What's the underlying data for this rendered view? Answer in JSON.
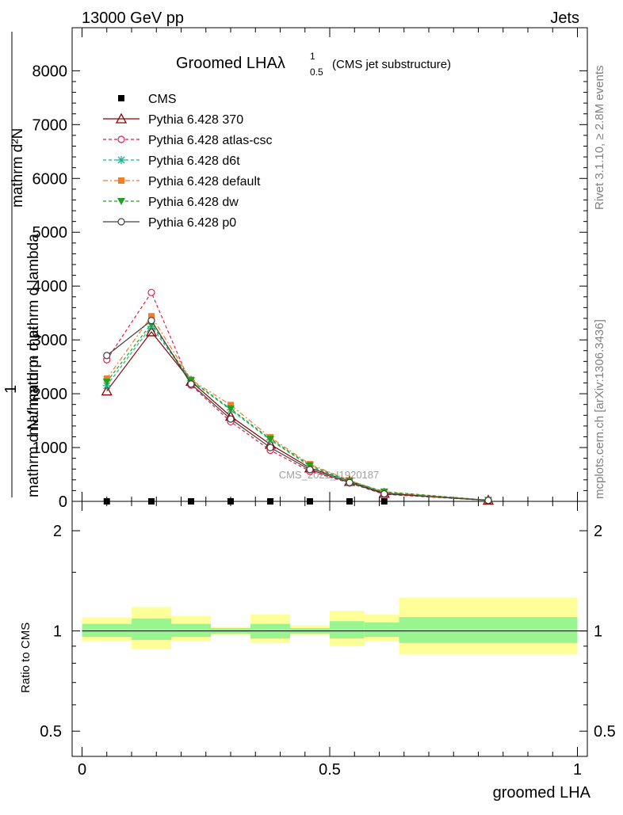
{
  "header": {
    "left": "13000 GeV pp",
    "right": "Jets"
  },
  "side_text": {
    "rivet": "Rivet 3.1.10, ≥ 2.8M events",
    "mcplots": "mcplots.cern.ch [arXiv:1306.3436]"
  },
  "watermark": "CMS_2021_I1920187",
  "chart_data": {
    "type": "line",
    "title_main": "Groomed LHAλ",
    "title_sup": "1",
    "title_sub": "0.5",
    "title_note": "(CMS jet substructure)",
    "xlabel": "groomed LHA",
    "ylabel_top": "mathrm d²N",
    "ylabel_one": "1",
    "ylabel_mid": "mathrm d pₜ mathrm d lambda",
    "ylabel_bottom": "mathrm d N / mathrm d pₜ",
    "xlim": [
      -0.02,
      1.02
    ],
    "ylim": [
      0,
      8800
    ],
    "x_ticks": [
      0,
      0.5,
      1
    ],
    "x_tick_labels": [
      "0",
      "0.5",
      "1"
    ],
    "y_ticks": [
      0,
      1000,
      2000,
      3000,
      4000,
      5000,
      6000,
      7000,
      8000
    ],
    "y_tick_labels": [
      "0",
      "1000",
      "2000",
      "3000",
      "4000",
      "5000",
      "6000",
      "7000",
      "8000"
    ],
    "x": [
      0.05,
      0.14,
      0.22,
      0.3,
      0.38,
      0.46,
      0.54,
      0.61,
      0.82
    ],
    "series": [
      {
        "name": "CMS",
        "color": "#000000",
        "marker": "square",
        "dash": "none",
        "values": [
          0,
          0,
          0,
          0,
          0,
          0,
          0,
          0,
          0
        ]
      },
      {
        "name": "Pythia 6.428 370",
        "color": "#8b0000",
        "marker": "triangle-open",
        "dash": "solid",
        "values": [
          2050,
          3150,
          2230,
          1580,
          1060,
          620,
          370,
          150,
          20
        ]
      },
      {
        "name": "Pythia 6.428 atlas-csc",
        "color": "#e8194a",
        "marker": "circle-open",
        "dash": "dashed",
        "values": [
          2630,
          3880,
          2160,
          1480,
          950,
          560,
          340,
          130,
          18
        ]
      },
      {
        "name": "Pythia 6.428 d6t",
        "color": "#18b48c",
        "marker": "star",
        "dash": "dashed",
        "values": [
          2150,
          3250,
          2240,
          1700,
          1140,
          650,
          360,
          170,
          22
        ]
      },
      {
        "name": "Pythia 6.428 default",
        "color": "#f07d28",
        "marker": "square",
        "dash": "dashdot",
        "values": [
          2280,
          3440,
          2260,
          1790,
          1190,
          690,
          390,
          170,
          22
        ]
      },
      {
        "name": "Pythia 6.428 dw",
        "color": "#20a020",
        "marker": "triangle-down",
        "dash": "dashed",
        "values": [
          2220,
          3300,
          2250,
          1720,
          1160,
          670,
          380,
          180,
          22
        ]
      },
      {
        "name": "Pythia 6.428 p0",
        "color": "#404040",
        "marker": "circle-open",
        "dash": "solid",
        "values": [
          2710,
          3360,
          2180,
          1530,
          1000,
          590,
          350,
          140,
          18
        ]
      }
    ],
    "ratio": {
      "ylabel": "Ratio to CMS",
      "ylim": [
        0.42,
        2.45
      ],
      "y_ticks": [
        0.5,
        1,
        2
      ],
      "y_tick_labels": [
        "0.5",
        "1",
        "2"
      ],
      "bins": [
        {
          "lo": 0.0,
          "hi": 0.1,
          "inner": [
            0.96,
            1.05
          ],
          "outer": [
            0.93,
            1.1
          ]
        },
        {
          "lo": 0.1,
          "hi": 0.18,
          "inner": [
            0.94,
            1.09
          ],
          "outer": [
            0.88,
            1.18
          ]
        },
        {
          "lo": 0.18,
          "hi": 0.26,
          "inner": [
            0.96,
            1.05
          ],
          "outer": [
            0.93,
            1.11
          ]
        },
        {
          "lo": 0.26,
          "hi": 0.34,
          "inner": [
            0.98,
            1.02
          ],
          "outer": [
            0.97,
            1.03
          ]
        },
        {
          "lo": 0.34,
          "hi": 0.42,
          "inner": [
            0.95,
            1.05
          ],
          "outer": [
            0.92,
            1.12
          ]
        },
        {
          "lo": 0.42,
          "hi": 0.5,
          "inner": [
            0.98,
            1.02
          ],
          "outer": [
            0.97,
            1.04
          ]
        },
        {
          "lo": 0.5,
          "hi": 0.57,
          "inner": [
            0.95,
            1.07
          ],
          "outer": [
            0.9,
            1.15
          ]
        },
        {
          "lo": 0.57,
          "hi": 0.64,
          "inner": [
            0.96,
            1.06
          ],
          "outer": [
            0.93,
            1.12
          ]
        },
        {
          "lo": 0.64,
          "hi": 1.0,
          "inner": [
            0.92,
            1.1
          ],
          "outer": [
            0.85,
            1.26
          ]
        }
      ]
    }
  }
}
